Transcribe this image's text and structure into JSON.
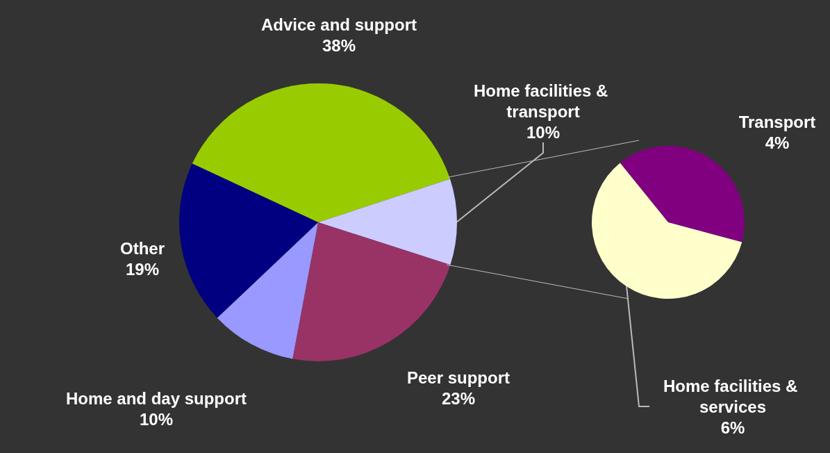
{
  "chart_data": [
    {
      "type": "pie",
      "categories": [
        "Advice and support",
        "Home facilities & transport",
        "Peer support",
        "Home and day support",
        "Other"
      ],
      "values": [
        38,
        10,
        23,
        10,
        19
      ],
      "value_labels": [
        "38%",
        "10%",
        "23%",
        "10%",
        "19%"
      ],
      "colors": [
        "#99cc00",
        "#ccccff",
        "#993366",
        "#9999ff",
        "#000080"
      ],
      "legend": false
    },
    {
      "type": "pie",
      "categories": [
        "Transport",
        "Home facilities & services"
      ],
      "values": [
        4,
        6
      ],
      "value_labels": [
        "4%",
        "6%"
      ],
      "colors": [
        "#800080",
        "#ffffcc"
      ],
      "legend": false
    }
  ]
}
